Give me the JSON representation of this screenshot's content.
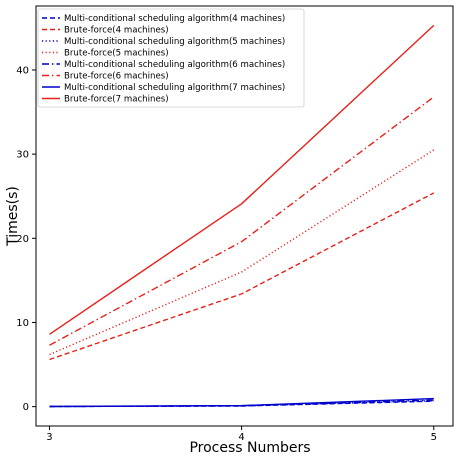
{
  "chart_data": {
    "type": "line",
    "title": "",
    "xlabel": "Process Numbers",
    "ylabel": "Times(s)",
    "x": [
      3,
      4,
      5
    ],
    "xlim": [
      2.93,
      5.1
    ],
    "ylim": [
      -2.3,
      47.6
    ],
    "xticks": [
      "3",
      "4",
      "5"
    ],
    "yticks": [
      0,
      10,
      20,
      30,
      40
    ],
    "grid": false,
    "legend_position": "top-left",
    "series": [
      {
        "name": "Multi-conditional scheduling algorithm(4 machines)",
        "values": [
          0.02,
          0.08,
          0.65
        ],
        "color": "#0000cc",
        "style": "dashed"
      },
      {
        "name": "Brute-force(4 machines)",
        "values": [
          5.6,
          13.4,
          25.4
        ],
        "color": "#e8201a",
        "style": "dashed"
      },
      {
        "name": "Multi-conditional scheduling algorithm(5 machines)",
        "values": [
          0.02,
          0.09,
          0.7
        ],
        "color": "#0000cc",
        "style": "dotted"
      },
      {
        "name": "Brute-force(5 machines)",
        "values": [
          6.2,
          16.0,
          30.5
        ],
        "color": "#e8201a",
        "style": "dotted"
      },
      {
        "name": "Multi-conditional scheduling algorithm(6 machines)",
        "values": [
          0.02,
          0.1,
          0.78
        ],
        "color": "#0000cc",
        "style": "dashdot"
      },
      {
        "name": "Brute-force(6 machines)",
        "values": [
          7.3,
          19.6,
          36.8
        ],
        "color": "#e8201a",
        "style": "dashdot"
      },
      {
        "name": "Multi-conditional scheduling algorithm(7 machines)",
        "values": [
          0.02,
          0.12,
          0.95
        ],
        "color": "#0000cc",
        "style": "solid"
      },
      {
        "name": "Brute-force(7 machines)",
        "values": [
          8.6,
          24.1,
          45.3
        ],
        "color": "#e8201a",
        "style": "solid"
      }
    ]
  }
}
